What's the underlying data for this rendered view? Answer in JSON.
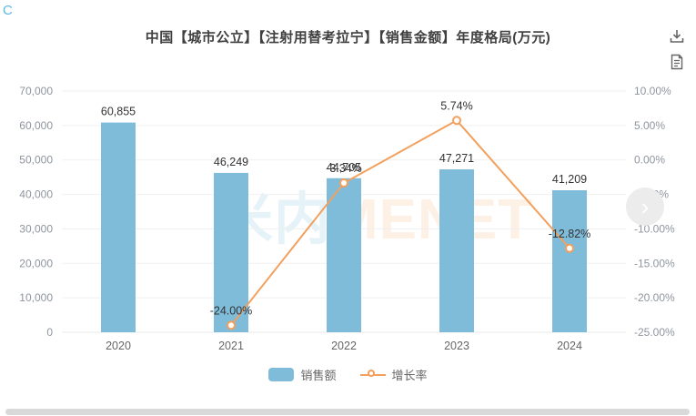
{
  "page": {
    "corner_logo": "C"
  },
  "header": {
    "title": "中国【城市公立】【注射用替考拉宁】【销售金额】年度格局(万元)"
  },
  "toolbar": {
    "icons": [
      {
        "name": "download-icon"
      },
      {
        "name": "report-icon"
      }
    ],
    "icon_color": "#666666"
  },
  "watermark": {
    "text_cn": "米内",
    "text_en": "MENET"
  },
  "nav": {
    "next_label": "›"
  },
  "colors": {
    "bar": "#7fbcd9",
    "line": "#f2a05e",
    "grid": "#f0f0f0",
    "axis_text": "#8f959e",
    "category_text": "#666666",
    "value_text": "#333333"
  },
  "chart_data": {
    "type": "bar",
    "title": "中国【城市公立】【注射用替考拉宁】【销售金额】年度格局(万元)",
    "xlabel": "",
    "ylabel_left": "万元",
    "ylabel_right": "增长率",
    "categories": [
      "2020",
      "2021",
      "2022",
      "2023",
      "2024"
    ],
    "series": [
      {
        "name": "销售额",
        "type": "bar",
        "axis": "left",
        "color": "#7fbcd9",
        "values": [
          60855,
          46249,
          44705,
          47271,
          41209
        ],
        "labels": [
          "60,855",
          "46,249",
          "44,705",
          "47,271",
          "41,209"
        ]
      },
      {
        "name": "增长率",
        "type": "line",
        "axis": "right",
        "color": "#f2a05e",
        "values": [
          null,
          -24.0,
          -3.34,
          5.74,
          -12.82
        ],
        "labels": [
          null,
          "-24.00%",
          "-3.34%",
          "5.74%",
          "-12.82%"
        ]
      }
    ],
    "y_left": {
      "min": 0,
      "max": 70000,
      "step": 10000,
      "tick_labels": [
        "0",
        "10,000",
        "20,000",
        "30,000",
        "40,000",
        "50,000",
        "60,000",
        "70,000"
      ]
    },
    "y_right": {
      "min": -25,
      "max": 10,
      "step": 5,
      "tick_labels": [
        "-25.00%",
        "-20.00%",
        "-15.00%",
        "-10.00%",
        "-5.00%",
        "0.00%",
        "5.00%",
        "10.00%"
      ]
    },
    "grid": true,
    "legend_position": "bottom"
  },
  "legend": [
    {
      "label": "销售额",
      "type": "bar",
      "color": "#7fbcd9"
    },
    {
      "label": "增长率",
      "type": "line",
      "color": "#f2a05e"
    }
  ]
}
